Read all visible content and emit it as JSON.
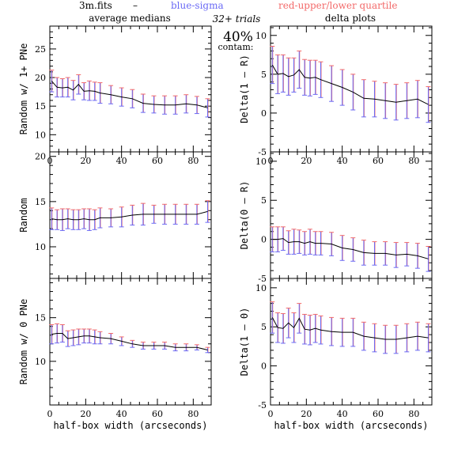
{
  "header": {
    "file_label": "3m.fits",
    "dash": "–",
    "blue_label": "blue-sigma",
    "red_label": "red-upper/lower quartile",
    "left_title": "average medians",
    "right_title": "delta plots",
    "trials": "32+ trials",
    "contam_pct": "40%",
    "contam_word": "contam:"
  },
  "colors": {
    "line": "#000000",
    "sigma": "#6a6af5",
    "quartile": "#f36a6a",
    "frame": "#000000"
  },
  "chart_data": [
    {
      "type": "line",
      "panel": "left-top",
      "ylabel": "Random w/ 1+ PNe",
      "xlim": [
        0,
        90
      ],
      "ylim": [
        7,
        29
      ],
      "xticks": [],
      "yticks": [
        10,
        15,
        20,
        25
      ],
      "x": [
        1,
        4,
        7,
        10,
        13,
        16,
        19,
        22,
        25,
        28,
        34,
        40,
        46,
        52,
        58,
        64,
        70,
        76,
        82,
        88
      ],
      "y": [
        19.4,
        18.3,
        18.2,
        18.3,
        17.8,
        18.8,
        17.6,
        17.7,
        17.6,
        17.3,
        17.0,
        16.6,
        16.3,
        15.5,
        15.3,
        15.2,
        15.2,
        15.4,
        15.2,
        14.7
      ],
      "err": [
        1.9,
        1.7,
        1.6,
        1.7,
        1.7,
        1.7,
        1.5,
        1.7,
        1.6,
        1.8,
        1.6,
        1.6,
        1.6,
        1.6,
        1.5,
        1.6,
        1.6,
        1.6,
        1.5,
        1.6
      ]
    },
    {
      "type": "line",
      "panel": "right-top",
      "ylabel": "Delta(1 – R)",
      "xlim": [
        0,
        90
      ],
      "ylim": [
        -5,
        11.2
      ],
      "xticks": [],
      "yticks": [
        -5,
        0,
        5,
        10
      ],
      "x": [
        1,
        4,
        7,
        10,
        13,
        16,
        19,
        22,
        25,
        28,
        34,
        40,
        46,
        52,
        58,
        64,
        70,
        76,
        82,
        88
      ],
      "y": [
        6.2,
        5.0,
        5.1,
        4.7,
        4.9,
        5.6,
        4.6,
        4.5,
        4.6,
        4.3,
        3.8,
        3.3,
        2.7,
        1.9,
        1.8,
        1.6,
        1.4,
        1.6,
        1.8,
        1.1
      ],
      "err": [
        2.4,
        2.5,
        2.4,
        2.4,
        2.2,
        2.4,
        2.3,
        2.3,
        2.2,
        2.3,
        2.3,
        2.3,
        2.3,
        2.4,
        2.3,
        2.3,
        2.3,
        2.3,
        2.4,
        2.3
      ]
    },
    {
      "type": "line",
      "panel": "left-middle",
      "ylabel": "Random",
      "xlim": [
        0,
        90
      ],
      "ylim": [
        6.5,
        20.5
      ],
      "xticks": [
        0,
        20,
        40,
        60,
        80
      ],
      "yticks": [
        10,
        15,
        20
      ],
      "x": [
        1,
        4,
        7,
        10,
        13,
        16,
        19,
        22,
        25,
        28,
        34,
        40,
        46,
        52,
        58,
        64,
        70,
        76,
        82,
        88
      ],
      "y": [
        13.1,
        13.0,
        13.0,
        13.1,
        13.0,
        13.0,
        13.1,
        13.0,
        13.0,
        13.2,
        13.2,
        13.3,
        13.5,
        13.6,
        13.6,
        13.6,
        13.6,
        13.6,
        13.6,
        13.9
      ],
      "err": [
        1.2,
        1.1,
        1.2,
        1.1,
        1.1,
        1.1,
        1.1,
        1.2,
        1.1,
        1.1,
        1.0,
        1.1,
        1.1,
        1.2,
        1.0,
        1.1,
        1.1,
        1.1,
        1.1,
        1.2
      ]
    },
    {
      "type": "line",
      "panel": "right-middle",
      "ylabel": "Delta(0 – R)",
      "xlim": [
        0,
        90
      ],
      "ylim": [
        -5,
        11.2
      ],
      "xticks": [
        0,
        20,
        40,
        60,
        80
      ],
      "yticks": [
        -5,
        0,
        5,
        10
      ],
      "x": [
        1,
        4,
        7,
        10,
        13,
        16,
        19,
        22,
        25,
        28,
        34,
        40,
        46,
        52,
        58,
        64,
        70,
        76,
        82,
        88
      ],
      "y": [
        0.0,
        0.0,
        0.1,
        -0.4,
        -0.3,
        -0.3,
        -0.5,
        -0.3,
        -0.5,
        -0.5,
        -0.6,
        -1.1,
        -1.3,
        -1.7,
        -1.8,
        -1.8,
        -2.0,
        -1.9,
        -2.1,
        -2.5
      ],
      "err": [
        1.6,
        1.6,
        1.5,
        1.5,
        1.6,
        1.5,
        1.5,
        1.6,
        1.5,
        1.5,
        1.5,
        1.6,
        1.5,
        1.6,
        1.5,
        1.5,
        1.6,
        1.5,
        1.6,
        1.6
      ]
    },
    {
      "type": "line",
      "panel": "left-bottom",
      "ylabel": "Random w/ 0 PNe",
      "xlim": [
        0,
        90
      ],
      "ylim": [
        5,
        19.5
      ],
      "xticks": [
        0,
        20,
        40,
        60,
        80
      ],
      "yticks": [
        10,
        15
      ],
      "xlabel": "half-box width (arcseconds)",
      "x": [
        1,
        4,
        7,
        10,
        13,
        16,
        19,
        22,
        25,
        28,
        34,
        40,
        46,
        52,
        58,
        64,
        70,
        76,
        82,
        88
      ],
      "y": [
        13.1,
        13.2,
        13.2,
        12.6,
        12.7,
        12.8,
        12.9,
        12.9,
        12.8,
        12.7,
        12.6,
        12.3,
        12.0,
        11.8,
        11.8,
        11.8,
        11.6,
        11.6,
        11.6,
        11.3
      ],
      "err": [
        1.1,
        1.1,
        1.0,
        0.9,
        0.9,
        0.9,
        0.8,
        0.8,
        0.8,
        0.7,
        0.6,
        0.5,
        0.4,
        0.4,
        0.4,
        0.4,
        0.4,
        0.4,
        0.3,
        0.3
      ]
    },
    {
      "type": "line",
      "panel": "right-bottom",
      "ylabel": "Delta(1 – 0)",
      "xlim": [
        0,
        90
      ],
      "ylim": [
        -5,
        11.2
      ],
      "xticks": [
        0,
        20,
        40,
        60,
        80
      ],
      "yticks": [
        -5,
        0,
        5,
        10
      ],
      "xlabel": "half-box width (arcseconds)",
      "x": [
        1,
        4,
        7,
        10,
        13,
        16,
        19,
        22,
        25,
        28,
        34,
        40,
        46,
        52,
        58,
        64,
        70,
        76,
        82,
        88
      ],
      "y": [
        6.2,
        4.9,
        4.8,
        5.5,
        4.9,
        6.1,
        4.7,
        4.6,
        4.8,
        4.6,
        4.4,
        4.3,
        4.3,
        3.8,
        3.6,
        3.4,
        3.4,
        3.6,
        3.8,
        3.6
      ],
      "err": [
        2.0,
        1.9,
        1.9,
        1.9,
        1.9,
        1.9,
        1.9,
        1.9,
        1.8,
        1.8,
        1.8,
        1.8,
        1.8,
        1.8,
        1.8,
        1.8,
        1.8,
        1.8,
        1.8,
        1.8
      ]
    }
  ]
}
